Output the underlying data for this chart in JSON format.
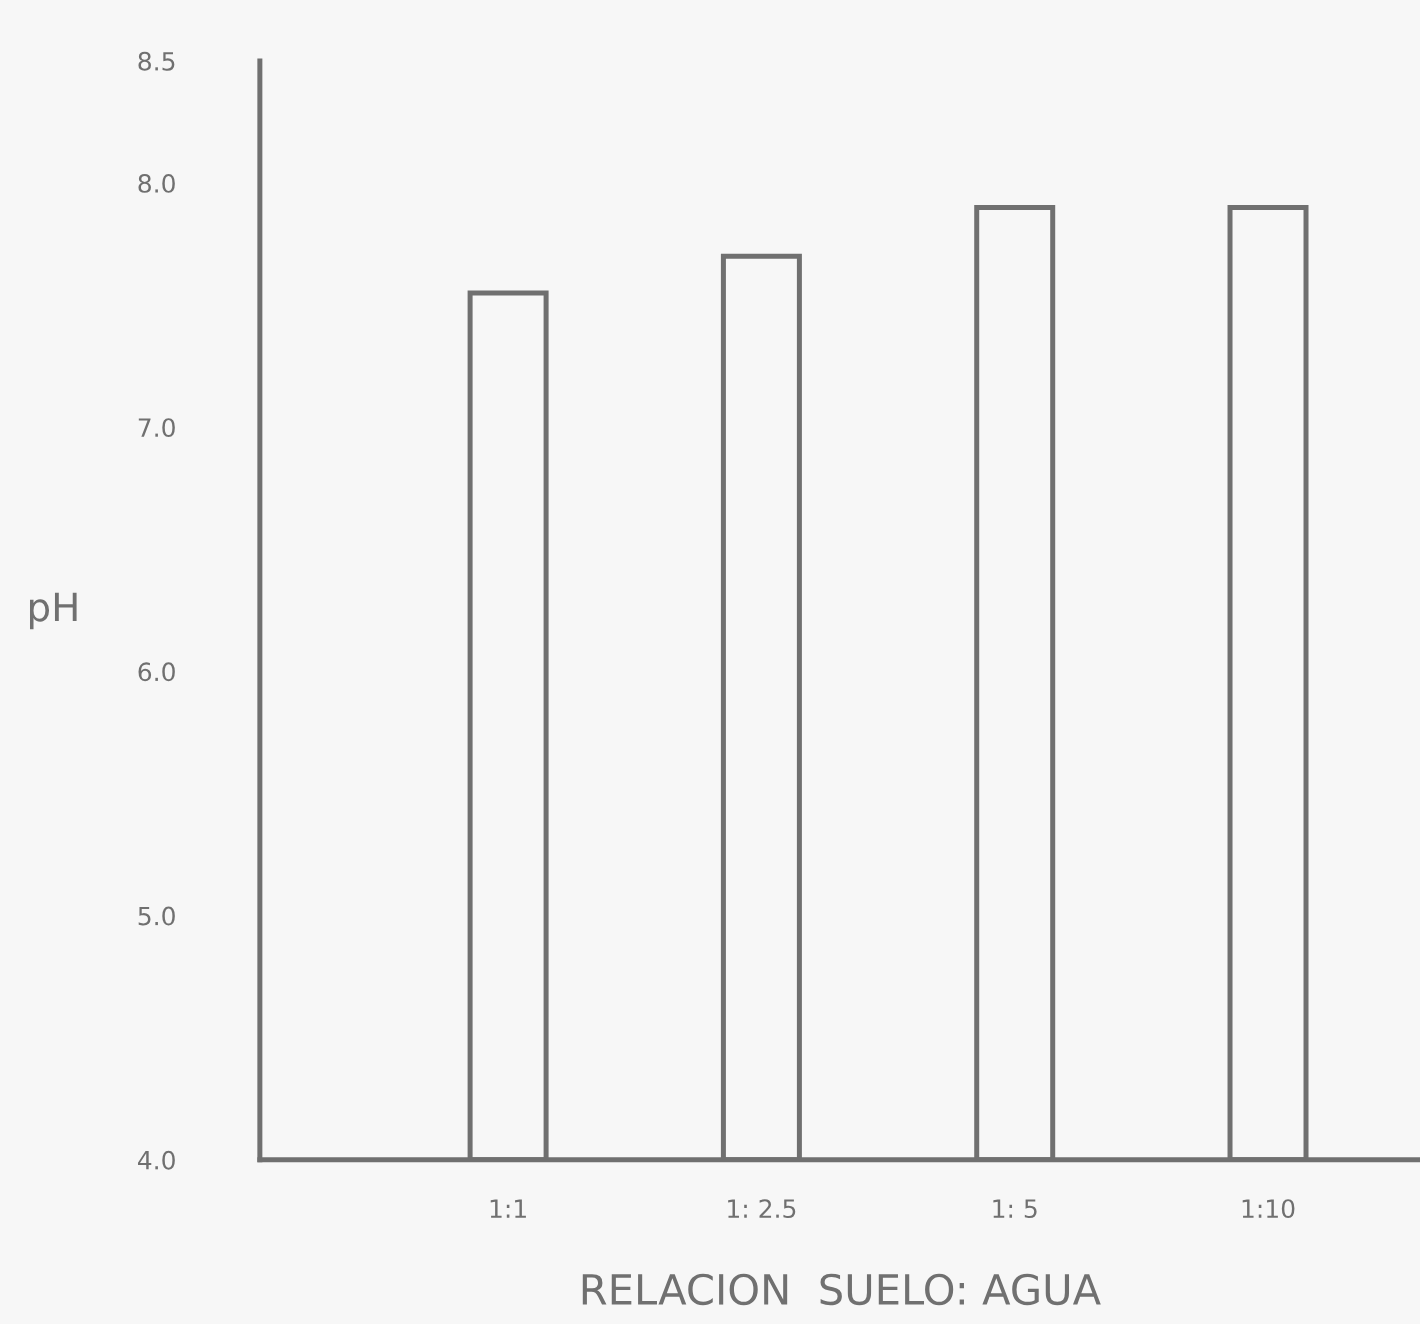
{
  "chart_data": {
    "type": "bar",
    "xlabel": "RELACION  SUELO: AGUA",
    "ylabel": "pH",
    "categories": [
      "1:1",
      "1: 2.5",
      "1: 5",
      "1:10"
    ],
    "values": [
      7.55,
      7.7,
      7.9,
      7.9
    ],
    "color": "#f7f7f7",
    "ylim": [
      4.0,
      8.5
    ],
    "yticks": [
      {
        "value": 4.0,
        "label": "4.0"
      },
      {
        "value": 5.0,
        "label": "5.0"
      },
      {
        "value": 6.0,
        "label": "6.0"
      },
      {
        "value": 7.0,
        "label": "7.0"
      },
      {
        "value": 8.0,
        "label": "8.0"
      },
      {
        "value": 8.5,
        "label": "8.5"
      }
    ],
    "grid": false,
    "legend": false
  }
}
